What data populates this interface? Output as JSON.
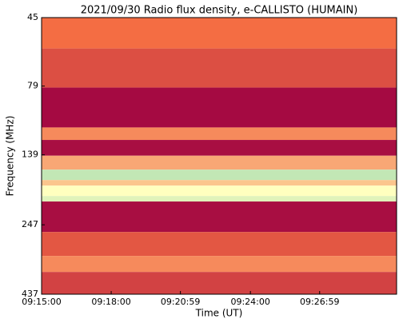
{
  "chart_data": {
    "type": "spectrogram",
    "title": "2021/09/30  Radio flux density, e-CALLISTO (HUMAIN)",
    "x_label": "Time (UT)",
    "y_label": "Frequency (MHz)",
    "xlim": [
      "09:15:00",
      "09:30:18"
    ],
    "xticks": [
      "09:15:00",
      "09:18:00",
      "09:20:59",
      "09:24:00",
      "09:26:59"
    ],
    "ylim": [
      45,
      437
    ],
    "yticks": [
      45,
      79,
      139,
      247,
      437
    ],
    "y_log": true,
    "y_inverted": true,
    "frequency_edges": [
      45,
      58,
      80,
      111,
      123,
      140,
      157,
      171,
      179,
      195,
      204,
      262,
      319,
      364,
      437
    ],
    "intensity": [
      0.25,
      0.18,
      0.02,
      0.3,
      0.03,
      0.35,
      0.6,
      0.4,
      0.5,
      0.55,
      0.03,
      0.2,
      0.3,
      0.15
    ],
    "colormap": [
      "#9e0142",
      "#f46d43",
      "#ffffbf",
      "#66c2a5",
      "#5e4fa2"
    ]
  }
}
